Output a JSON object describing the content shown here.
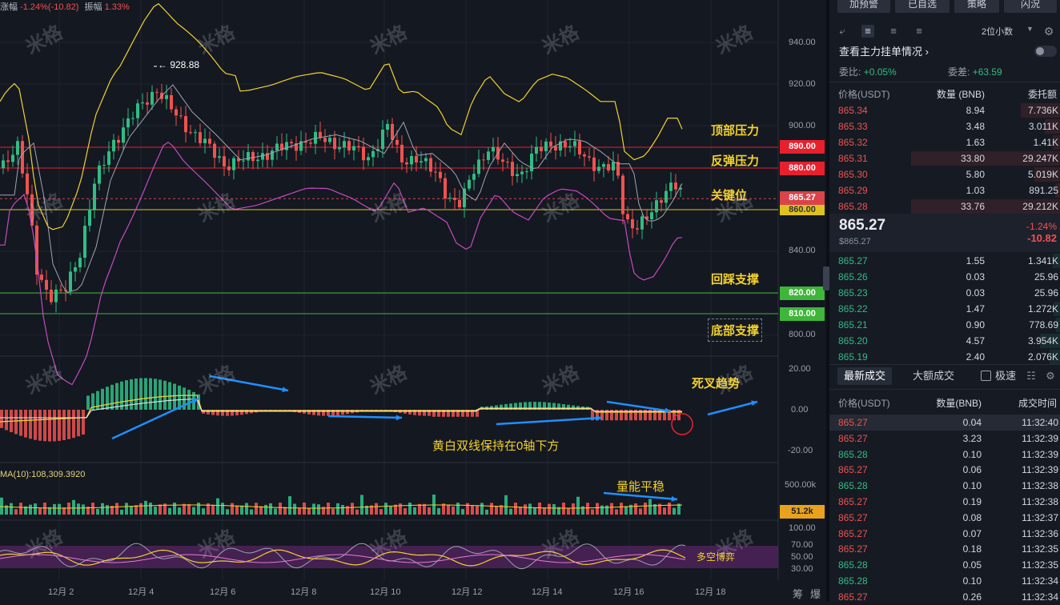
{
  "header": {
    "change_label": "涨幅",
    "change_value": "-1.24%(-10.82)",
    "amplitude_label": "振幅",
    "amplitude_value": "1.33%"
  },
  "chart": {
    "y_ticks": [
      "940.00",
      "920.00",
      "900.00",
      "880.00",
      "860.00",
      "840.00",
      "820.00",
      "800.00"
    ],
    "macd_ticks": [
      "20.00",
      "0.00",
      "-20.00"
    ],
    "vol_ticks": [
      "500.00k"
    ],
    "rsi_ticks": [
      "100.00",
      "70.00",
      "50.00",
      "30.00"
    ],
    "x_ticks": [
      "12月 2",
      "12月 4",
      "12月 6",
      "12月 8",
      "12月 10",
      "12月 12",
      "12月 14",
      "12月 16",
      "12月 18"
    ],
    "high_marker": "← 928.88",
    "vol_ma_label": "MA(10):108,309.3920",
    "vol_current": "51.2k",
    "current_price_tag": "865.27",
    "price_tags": {
      "p890": "890.00",
      "p880": "880.00",
      "p860": "860.00",
      "p820": "820.00",
      "p810": "810.00"
    },
    "bottom_right": [
      "筹",
      "爆"
    ],
    "watermark": "米格",
    "colors": {
      "up": "#2ebd85",
      "down": "#f0524f",
      "boll": "#f2d12e",
      "ma_gray": "#9ea4b0",
      "ma_purple": "#c34bc0",
      "arrow": "#1e90ff"
    }
  },
  "annotations": {
    "top_pressure": "顶部压力",
    "rebound_pressure": "反弹压力",
    "key_level": "关键位",
    "pullback_support": "回踩支撑",
    "bottom_support": "底部支撑",
    "death_cross": "死叉趋势",
    "macd_note": "黄白双线保持在0轴下方",
    "volume_note": "量能平稳",
    "rsi_note": "多空博弈"
  },
  "panel": {
    "top_buttons": [
      "加预警",
      "已自选",
      "策略",
      "闪況"
    ],
    "precision": "2位小数",
    "main_orders_link": "查看主力挂单情况",
    "ratio_label": "委比:",
    "ratio_value": "+0.05%",
    "diff_label": "委差:",
    "diff_value": "+63.59",
    "col_price": "价格(USDT)",
    "col_qty": "数量 (BNB)",
    "col_amount": "委托额",
    "asks": [
      {
        "p": "865.34",
        "q": "8.94",
        "a": "7.736K"
      },
      {
        "p": "865.33",
        "q": "3.48",
        "a": "3.011K"
      },
      {
        "p": "865.32",
        "q": "1.63",
        "a": "1.41K"
      },
      {
        "p": "865.31",
        "q": "33.80",
        "a": "29.247K"
      },
      {
        "p": "865.30",
        "q": "5.80",
        "a": "5.019K"
      },
      {
        "p": "865.29",
        "q": "1.03",
        "a": "891.25"
      },
      {
        "p": "865.28",
        "q": "33.76",
        "a": "29.212K"
      }
    ],
    "last_price": "865.27",
    "last_price_usd": "$865.27",
    "last_change_pct": "-1.24%",
    "last_change": "-10.82",
    "bids": [
      {
        "p": "865.27",
        "q": "1.55",
        "a": "1.341K"
      },
      {
        "p": "865.26",
        "q": "0.03",
        "a": "25.96"
      },
      {
        "p": "865.23",
        "q": "0.03",
        "a": "25.96"
      },
      {
        "p": "865.22",
        "q": "1.47",
        "a": "1.272K"
      },
      {
        "p": "865.21",
        "q": "0.90",
        "a": "778.69"
      },
      {
        "p": "865.20",
        "q": "4.57",
        "a": "3.954K"
      },
      {
        "p": "865.19",
        "q": "2.40",
        "a": "2.076K"
      }
    ],
    "tab_latest": "最新成交",
    "tab_large": "大额成交",
    "speed_label": "极速",
    "trades_col_price": "价格(USDT)",
    "trades_col_qty": "数量(BNB)",
    "trades_col_time": "成交时间",
    "trades": [
      {
        "p": "865.27",
        "q": "0.04",
        "t": "11:32:40",
        "s": "down"
      },
      {
        "p": "865.27",
        "q": "3.23",
        "t": "11:32:39",
        "s": "down"
      },
      {
        "p": "865.28",
        "q": "0.10",
        "t": "11:32:39",
        "s": "up"
      },
      {
        "p": "865.27",
        "q": "0.06",
        "t": "11:32:39",
        "s": "down"
      },
      {
        "p": "865.28",
        "q": "0.10",
        "t": "11:32:38",
        "s": "up"
      },
      {
        "p": "865.27",
        "q": "0.19",
        "t": "11:32:38",
        "s": "down"
      },
      {
        "p": "865.27",
        "q": "0.08",
        "t": "11:32:37",
        "s": "down"
      },
      {
        "p": "865.27",
        "q": "0.07",
        "t": "11:32:36",
        "s": "down"
      },
      {
        "p": "865.27",
        "q": "0.18",
        "t": "11:32:35",
        "s": "down"
      },
      {
        "p": "865.28",
        "q": "0.05",
        "t": "11:32:35",
        "s": "up"
      },
      {
        "p": "865.28",
        "q": "0.10",
        "t": "11:32:34",
        "s": "up"
      },
      {
        "p": "865.27",
        "q": "0.26",
        "t": "11:32:34",
        "s": "down"
      }
    ]
  }
}
